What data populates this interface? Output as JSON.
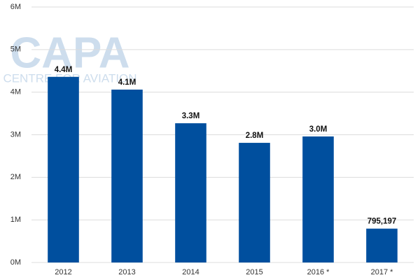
{
  "chart_data": {
    "type": "bar",
    "watermark": {
      "logo": "CAPA",
      "subtitle": "CENTRE FOR AVIATION"
    },
    "categories": [
      "2012",
      "2013",
      "2014",
      "2015",
      "2016 *",
      "2017 *"
    ],
    "values": [
      4360000,
      4060000,
      3270000,
      2810000,
      2960000,
      795197
    ],
    "value_labels": [
      "4.4M",
      "4.1M",
      "3.3M",
      "2.8M",
      "3.0M",
      "795,197"
    ],
    "color": "#004f9e",
    "ylim": [
      0,
      6000000
    ],
    "yticks": [
      {
        "value": 0,
        "label": "0M"
      },
      {
        "value": 1000000,
        "label": "1M"
      },
      {
        "value": 2000000,
        "label": "2M"
      },
      {
        "value": 3000000,
        "label": "3M"
      },
      {
        "value": 4000000,
        "label": "4M"
      },
      {
        "value": 5000000,
        "label": "5M"
      },
      {
        "value": 6000000,
        "label": "6M"
      }
    ],
    "grid": true
  }
}
